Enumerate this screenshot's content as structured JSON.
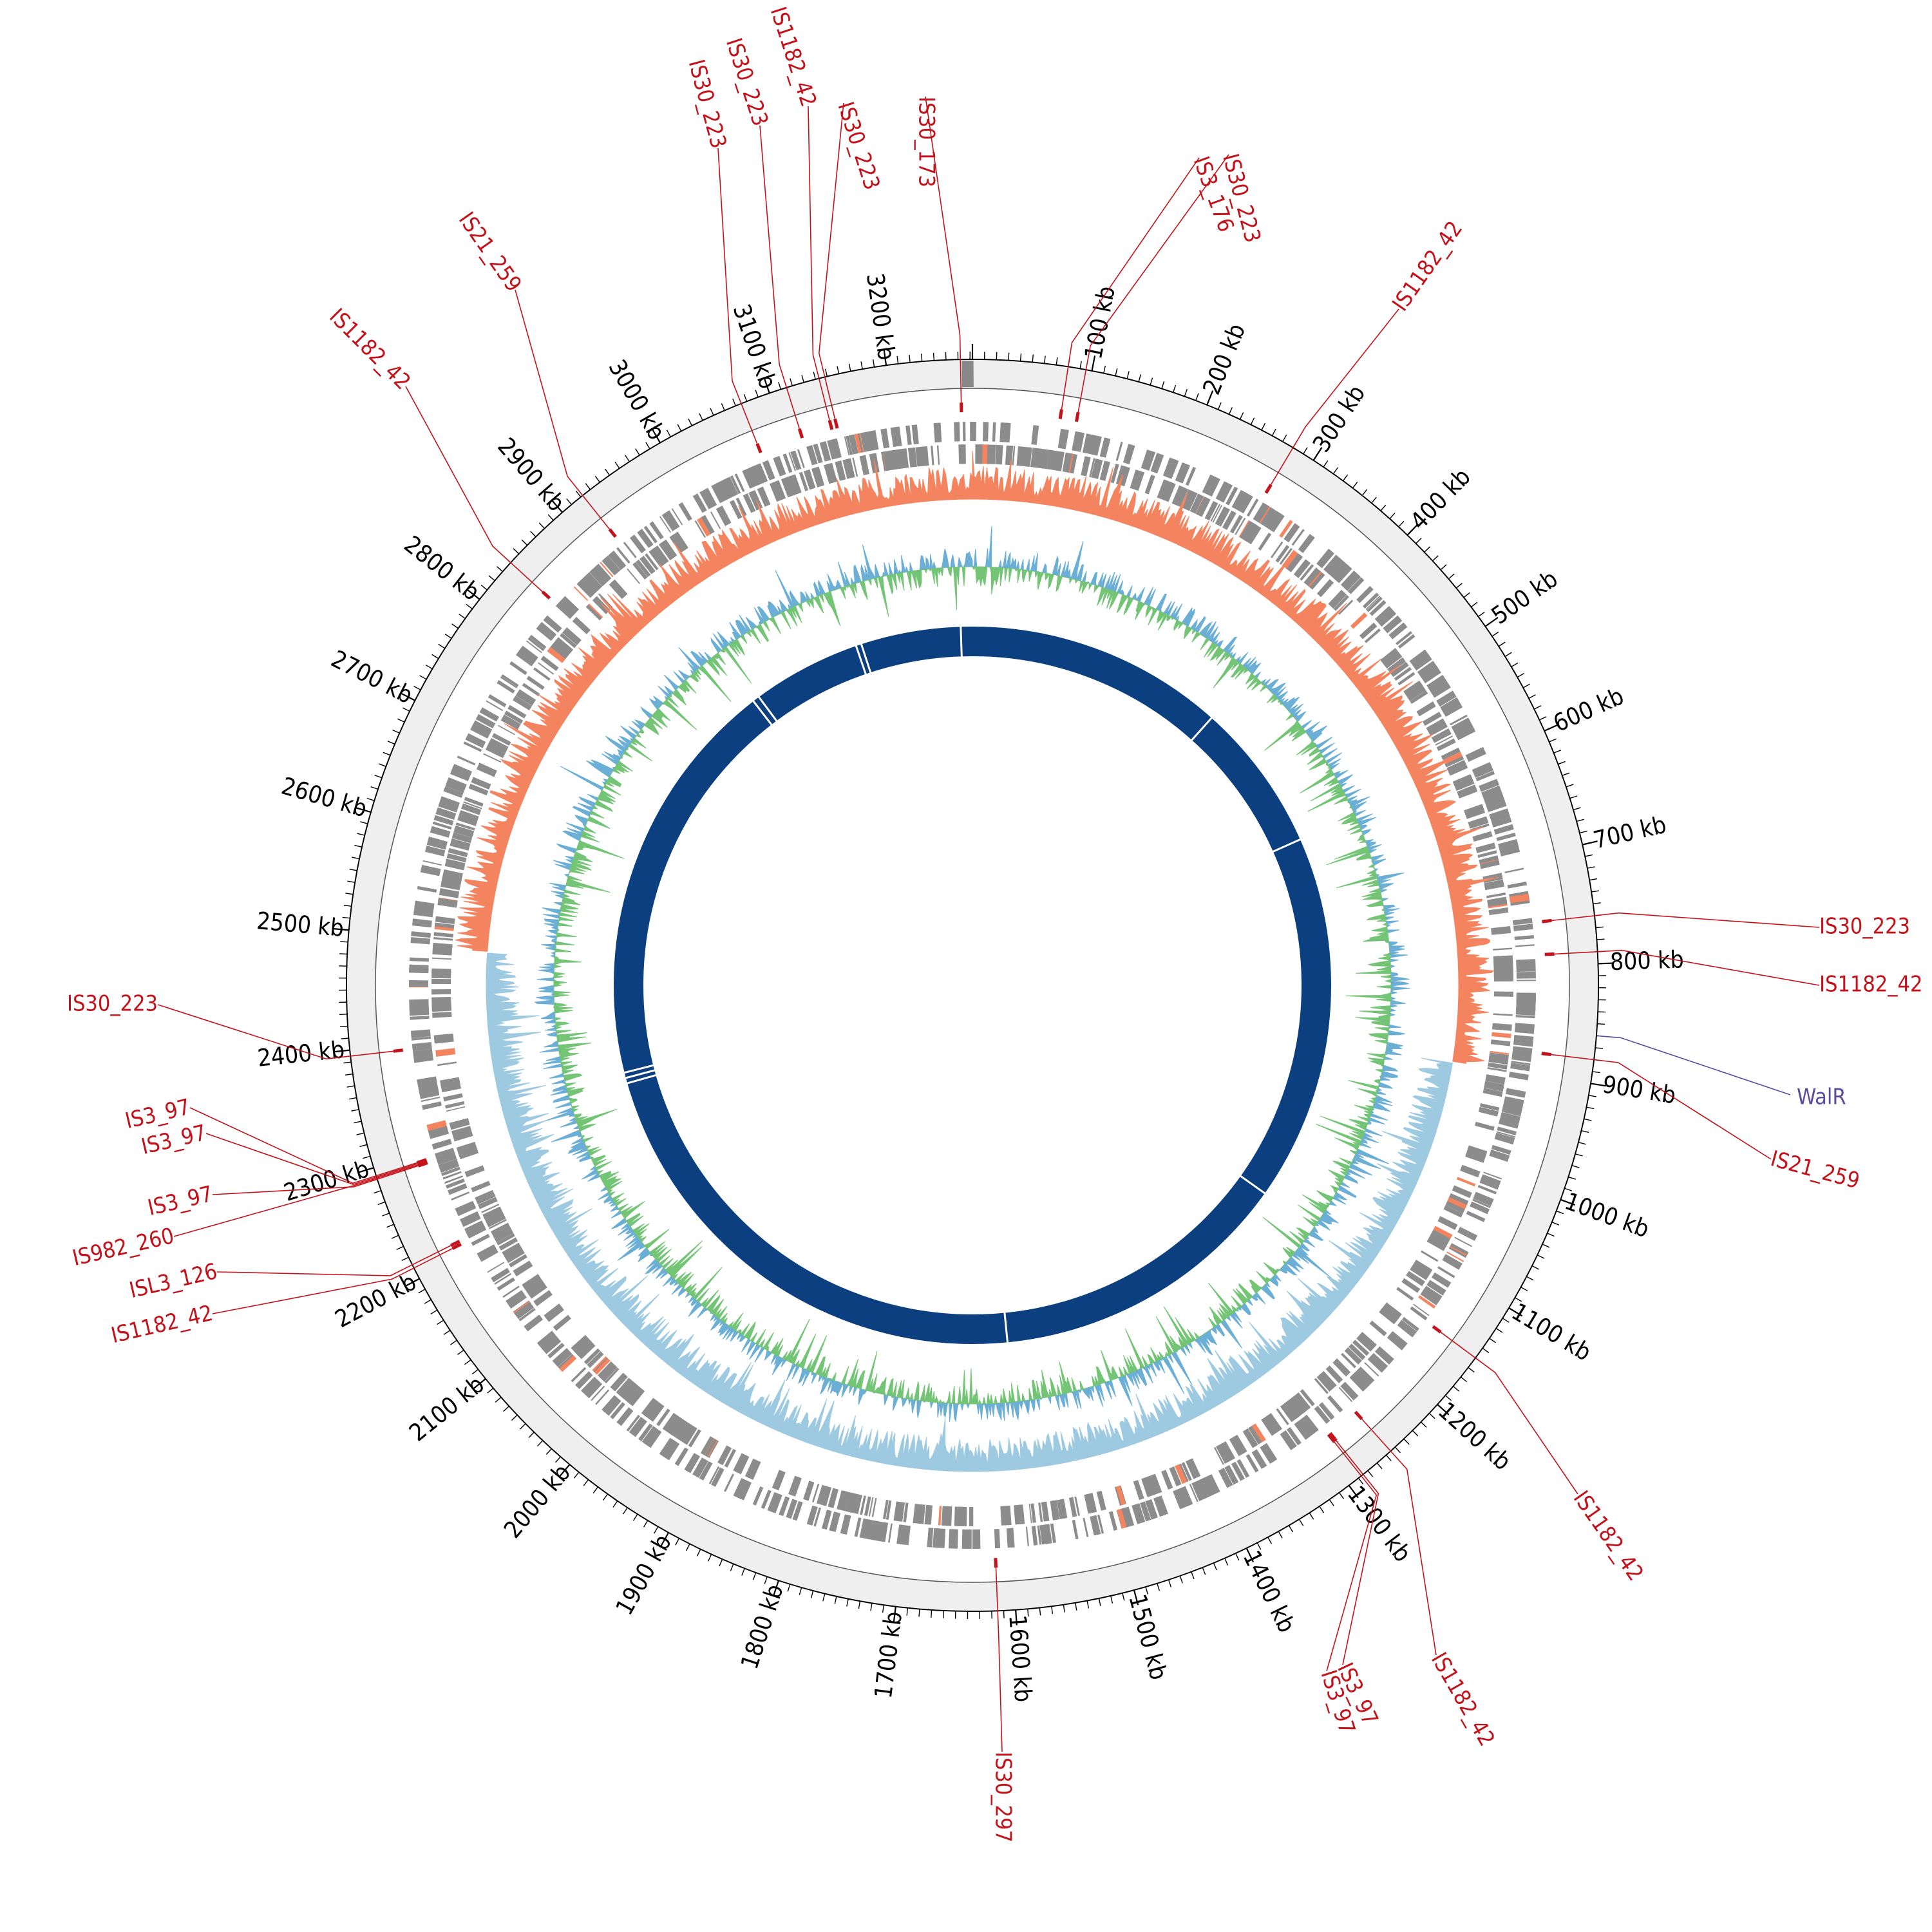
{
  "genome": {
    "total_kb": 3272,
    "tick_labels": [
      "100 kb",
      "200 kb",
      "300 kb",
      "400 kb",
      "500 kb",
      "600 kb",
      "700 kb",
      "800 kb",
      "900 kb",
      "1000 kb",
      "1100 kb",
      "1200 kb",
      "1300 kb",
      "1400 kb",
      "1500 kb",
      "1600 kb",
      "1700 kb",
      "1800 kb",
      "1900 kb",
      "2000 kb",
      "2100 kb",
      "2200 kb",
      "2300 kb",
      "2400 kb",
      "2500 kb",
      "2600 kb",
      "2700 kb",
      "2800 kb",
      "2900 kb",
      "3000 kb",
      "3100 kb",
      "3200 kb"
    ]
  },
  "colors": {
    "is_element": "#c4121a",
    "regulator": "#5b4b9e",
    "gc_skew_positive": "#f4845f",
    "gc_skew_negative": "#9ecae1",
    "gc_content_high": "#6baed6",
    "gc_content_low": "#74c476",
    "homology_ring": "#0b3f7f",
    "cds": "#8c8c8c",
    "backbone": "#efefef"
  },
  "is_elements": [
    {
      "label": "IS30_173",
      "kb": 3262
    },
    {
      "label": "IS3_176",
      "kb": 80
    },
    {
      "label": "IS30_223",
      "kb": 95
    },
    {
      "label": "IS1182_42",
      "kb": 280
    },
    {
      "label": "IS30_223",
      "kb": 760
    },
    {
      "label": "IS1182_42",
      "kb": 790
    },
    {
      "label": "IS21_259",
      "kb": 880
    },
    {
      "label": "IS1182_42",
      "kb": 1150
    },
    {
      "label": "IS1182_42",
      "kb": 1255
    },
    {
      "label": "IS3_97",
      "kb": 1285
    },
    {
      "label": "IS3_97",
      "kb": 1287
    },
    {
      "label": "IS30_297",
      "kb": 1615
    },
    {
      "label": "IS1182_42",
      "kb": 2210
    },
    {
      "label": "ISL3_126",
      "kb": 2213
    },
    {
      "label": "IS3_97",
      "kb": 2290
    },
    {
      "label": "IS982_260",
      "kb": 2291
    },
    {
      "label": "IS3_97",
      "kb": 2292
    },
    {
      "label": "IS3_97",
      "kb": 2293
    },
    {
      "label": "IS30_223",
      "kb": 2395
    },
    {
      "label": "IS1182_42",
      "kb": 2840
    },
    {
      "label": "IS21_259",
      "kb": 2922
    },
    {
      "label": "IS30_223",
      "kb": 3075
    },
    {
      "label": "IS30_223",
      "kb": 3115
    },
    {
      "label": "IS1182_42",
      "kb": 3143
    },
    {
      "label": "IS30_223",
      "kb": 3148
    }
  ],
  "regulator": {
    "label": "WalR",
    "kb": 860
  }
}
